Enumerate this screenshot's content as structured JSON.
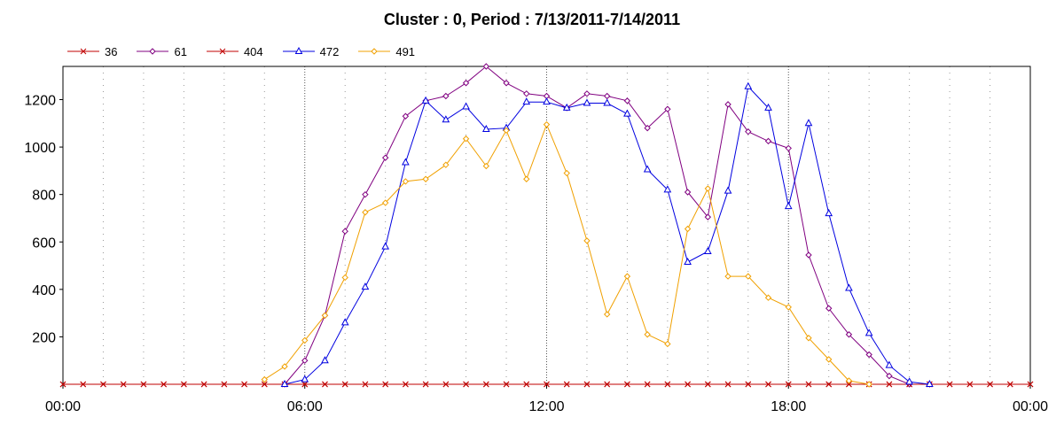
{
  "chart_data": {
    "type": "line",
    "title": "Cluster : 0, Period : 7/13/2011-7/14/2011",
    "xlabel": "",
    "ylabel": "",
    "x_tick_labels": [
      "00:00",
      "06:00",
      "12:00",
      "18:00",
      "00:00"
    ],
    "y_ticks": [
      200,
      400,
      600,
      800,
      1000,
      1200
    ],
    "xlim": [
      0,
      24
    ],
    "ylim": [
      0,
      1340
    ],
    "grid": "vertical dotted",
    "legend": "top-left",
    "x": [
      0,
      0.5,
      1,
      1.5,
      2,
      2.5,
      3,
      3.5,
      4,
      4.5,
      5,
      5.5,
      6,
      6.5,
      7,
      7.5,
      8,
      8.5,
      9,
      9.5,
      10,
      10.5,
      11,
      11.5,
      12,
      12.5,
      13,
      13.5,
      14,
      14.5,
      15,
      15.5,
      16,
      16.5,
      17,
      17.5,
      18,
      18.5,
      19,
      19.5,
      20,
      20.5,
      21,
      21.5,
      22,
      22.5,
      23,
      23.5,
      24
    ],
    "series": [
      {
        "name": "36",
        "color": "#c00000",
        "marker": "x",
        "values": [
          0,
          0,
          0,
          0,
          0,
          0,
          0,
          0,
          0,
          0,
          0,
          0,
          0,
          0,
          0,
          0,
          0,
          0,
          0,
          0,
          0,
          0,
          0,
          0,
          0,
          0,
          0,
          0,
          0,
          0,
          0,
          0,
          0,
          0,
          0,
          0,
          0,
          0,
          0,
          0,
          0,
          0,
          0,
          0,
          0,
          0,
          0,
          0,
          0
        ]
      },
      {
        "name": "61",
        "color": "#800080",
        "marker": "diamond",
        "values": [
          null,
          null,
          null,
          null,
          null,
          null,
          null,
          null,
          null,
          null,
          null,
          0,
          100,
          290,
          645,
          800,
          955,
          1130,
          1195,
          1215,
          1270,
          1340,
          1270,
          1225,
          1215,
          1165,
          1225,
          1215,
          1195,
          1080,
          1160,
          810,
          705,
          1180,
          1065,
          1025,
          995,
          545,
          320,
          210,
          125,
          35,
          0,
          0,
          null,
          null,
          null,
          null,
          null
        ]
      },
      {
        "name": "404",
        "color": "#c00000",
        "marker": "x",
        "values": [
          0,
          0,
          0,
          0,
          0,
          0,
          0,
          0,
          0,
          0,
          0,
          0,
          0,
          0,
          0,
          0,
          0,
          0,
          0,
          0,
          0,
          0,
          0,
          0,
          0,
          0,
          0,
          0,
          0,
          0,
          0,
          0,
          0,
          0,
          0,
          0,
          0,
          0,
          0,
          0,
          0,
          0,
          0,
          0,
          0,
          0,
          0,
          0,
          0
        ]
      },
      {
        "name": "472",
        "color": "#0000e0",
        "marker": "triangle",
        "values": [
          null,
          null,
          null,
          null,
          null,
          null,
          null,
          null,
          null,
          null,
          null,
          0,
          20,
          100,
          260,
          410,
          580,
          935,
          1195,
          1115,
          1170,
          1075,
          1080,
          1190,
          1190,
          1165,
          1185,
          1185,
          1140,
          905,
          820,
          515,
          560,
          815,
          1255,
          1165,
          750,
          1100,
          720,
          405,
          215,
          80,
          10,
          0,
          null,
          null,
          null,
          null,
          null
        ]
      },
      {
        "name": "491",
        "color": "#f0a000",
        "marker": "diamond",
        "values": [
          null,
          null,
          null,
          null,
          null,
          null,
          null,
          null,
          null,
          null,
          20,
          75,
          185,
          290,
          450,
          725,
          765,
          855,
          865,
          925,
          1035,
          920,
          1070,
          865,
          1095,
          890,
          605,
          295,
          455,
          210,
          170,
          655,
          825,
          455,
          455,
          365,
          325,
          195,
          105,
          15,
          0,
          null,
          null,
          null,
          null,
          null,
          null,
          null,
          null
        ]
      }
    ]
  }
}
